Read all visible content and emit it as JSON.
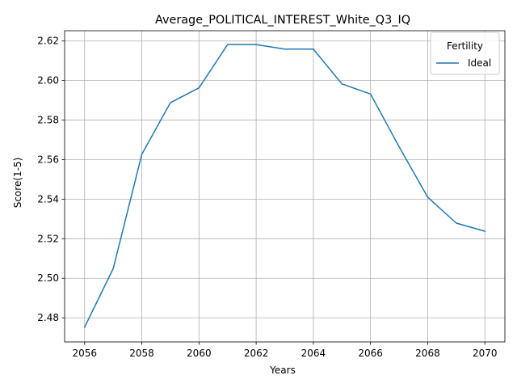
{
  "chart_data": {
    "type": "line",
    "title": "Average_POLITICAL_INTEREST_White_Q3_IQ",
    "xlabel": "Years",
    "ylabel": "Score(1-5)",
    "xlim": [
      2055.3,
      2070.7
    ],
    "ylim": [
      2.4678,
      2.6252
    ],
    "xticks": [
      2056,
      2058,
      2060,
      2062,
      2064,
      2066,
      2068,
      2070
    ],
    "xtick_labels": [
      "2056",
      "2058",
      "2060",
      "2062",
      "2064",
      "2066",
      "2068",
      "2070"
    ],
    "yticks": [
      2.48,
      2.5,
      2.52,
      2.54,
      2.56,
      2.58,
      2.6,
      2.62
    ],
    "ytick_labels": [
      "2.48",
      "2.50",
      "2.52",
      "2.54",
      "2.56",
      "2.58",
      "2.60",
      "2.62"
    ],
    "grid": true,
    "legend": {
      "title": "Fertility",
      "placement": "top-right"
    },
    "x": [
      2056,
      2057,
      2058,
      2059,
      2060,
      2061,
      2062,
      2063,
      2064,
      2065,
      2066,
      2067,
      2068,
      2069,
      2070
    ],
    "series": [
      {
        "name": "Ideal",
        "color": "#1f77b4",
        "values": [
          2.4753,
          2.5049,
          2.5627,
          2.5888,
          2.5963,
          2.6182,
          2.6182,
          2.6159,
          2.6159,
          2.5983,
          2.5932,
          2.5665,
          2.541,
          2.5279,
          2.5238
        ]
      }
    ]
  }
}
